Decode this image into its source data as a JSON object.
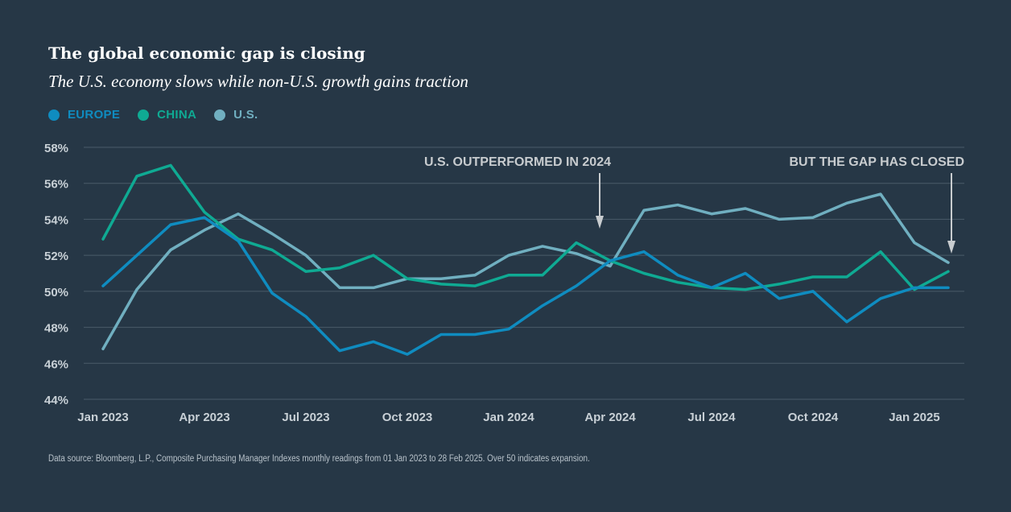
{
  "chart_data": {
    "type": "line",
    "title": "The global economic gap is closing",
    "subtitle": "The U.S. economy slows while non-U.S. growth gains traction",
    "xlabel": "",
    "ylabel": "",
    "ylim": [
      44,
      58
    ],
    "yticks": [
      44,
      46,
      48,
      50,
      52,
      54,
      56,
      58
    ],
    "ytick_labels": [
      "44%",
      "46%",
      "48%",
      "50%",
      "52%",
      "54%",
      "56%",
      "58%"
    ],
    "x": [
      "Jan 2023",
      "Feb 2023",
      "Mar 2023",
      "Apr 2023",
      "May 2023",
      "Jun 2023",
      "Jul 2023",
      "Aug 2023",
      "Sep 2023",
      "Oct 2023",
      "Nov 2023",
      "Dec 2023",
      "Jan 2024",
      "Feb 2024",
      "Mar 2024",
      "Apr 2024",
      "May 2024",
      "Jun 2024",
      "Jul 2024",
      "Aug 2024",
      "Sep 2024",
      "Oct 2024",
      "Nov 2024",
      "Dec 2024",
      "Jan 2025",
      "Feb 2025"
    ],
    "xtick_labels": [
      {
        "index": 0,
        "label": "Jan 2023"
      },
      {
        "index": 3,
        "label": "Apr 2023"
      },
      {
        "index": 6,
        "label": "Jul 2023"
      },
      {
        "index": 9,
        "label": "Oct 2023"
      },
      {
        "index": 12,
        "label": "Jan 2024"
      },
      {
        "index": 15,
        "label": "Apr 2024"
      },
      {
        "index": 18,
        "label": "Jul 2024"
      },
      {
        "index": 21,
        "label": "Oct 2024"
      },
      {
        "index": 24,
        "label": "Jan 2025"
      }
    ],
    "grid": true,
    "legend_position": "top-left",
    "series": [
      {
        "name": "EUROPE",
        "color": "#0f8cc0",
        "values": [
          50.3,
          52.0,
          53.7,
          54.1,
          52.8,
          49.9,
          48.6,
          46.7,
          47.2,
          46.5,
          47.6,
          47.6,
          47.9,
          49.2,
          50.3,
          51.7,
          52.2,
          50.9,
          50.2,
          51.0,
          49.6,
          50.0,
          48.3,
          49.6,
          50.2,
          50.2
        ]
      },
      {
        "name": "CHINA",
        "color": "#0faa93",
        "values": [
          52.9,
          56.4,
          57.0,
          54.4,
          52.9,
          52.3,
          51.1,
          51.3,
          52.0,
          50.7,
          50.4,
          50.3,
          50.9,
          50.9,
          52.7,
          51.7,
          51.0,
          50.5,
          50.2,
          50.1,
          50.4,
          50.8,
          50.8,
          52.2,
          50.1,
          51.1
        ]
      },
      {
        "name": "U.S.",
        "color": "#70afc0",
        "values": [
          46.8,
          50.1,
          52.3,
          53.4,
          54.3,
          53.2,
          52.0,
          50.2,
          50.2,
          50.7,
          50.7,
          50.9,
          52.0,
          52.5,
          52.1,
          51.4,
          54.5,
          54.8,
          54.3,
          54.6,
          54.0,
          54.1,
          54.9,
          55.4,
          52.7,
          51.6
        ]
      }
    ],
    "annotations": [
      {
        "text": "U.S. OUTPERFORMED IN 2024",
        "points_to": "Apr 2024"
      },
      {
        "text": "BUT THE GAP HAS CLOSED",
        "points_to": "Feb 2025"
      }
    ],
    "footnote": "Data source: Bloomberg, L.P., Composite Purchasing Manager Indexes monthly readings from 01 Jan 2023 to 28 Feb 2025. Over 50 indicates expansion."
  },
  "colors": {
    "background": "#263746",
    "grid": "#4a5b69",
    "axis_text": "#c8d0d6",
    "annotation": "#c8cccf"
  }
}
